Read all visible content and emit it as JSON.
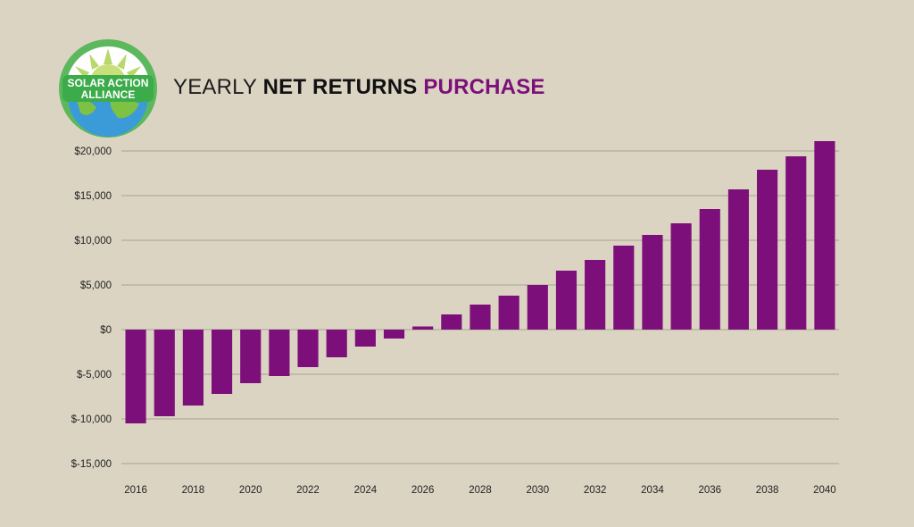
{
  "logo": {
    "line1": "SOLAR ACTION",
    "line2": "ALLIANCE",
    "ring_color": "#5cb85c",
    "globe_color": "#3b9ad8",
    "land_color": "#7dc242",
    "sun_color": "#b9d86c"
  },
  "title": {
    "part1": "YEARLY ",
    "part2": "NET RETURNS ",
    "part3": "PURCHASE"
  },
  "colors": {
    "bar": "#7d0f7a",
    "grid": "#a8a295",
    "background": "#dcd4c3"
  },
  "chart_data": {
    "type": "bar",
    "categories": [
      "2016",
      "2017",
      "2018",
      "2019",
      "2020",
      "2021",
      "2022",
      "2023",
      "2024",
      "2025",
      "2026",
      "2027",
      "2028",
      "2029",
      "2030",
      "2031",
      "2032",
      "2033",
      "2034",
      "2035",
      "2036",
      "2037",
      "2038",
      "2039",
      "2040"
    ],
    "values": [
      -10500,
      -9700,
      -8500,
      -7200,
      -6000,
      -5200,
      -4200,
      -3100,
      -1900,
      -1000,
      350,
      1700,
      2800,
      3800,
      5000,
      6600,
      7800,
      9400,
      10600,
      11900,
      13500,
      15700,
      17900,
      19400,
      21100
    ],
    "x_tick_labels": [
      "2016",
      "2018",
      "2020",
      "2022",
      "2024",
      "2026",
      "2028",
      "2030",
      "2032",
      "2034",
      "2036",
      "2038",
      "2040"
    ],
    "y_ticks": [
      20000,
      15000,
      10000,
      5000,
      0,
      -5000,
      -10000,
      -15000
    ],
    "y_tick_labels": [
      "$20,000",
      "$15,000",
      "$10,000",
      "$5,000",
      "$0",
      "$-5,000",
      "$-10,000",
      "$-15,000"
    ],
    "ylim": [
      -15000,
      20000
    ],
    "title": "YEARLY NET RETURNS PURCHASE",
    "xlabel": "",
    "ylabel": "",
    "grid": true,
    "legend": "none"
  }
}
